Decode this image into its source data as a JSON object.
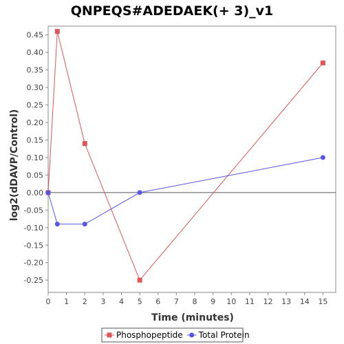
{
  "chart_data": {
    "type": "line",
    "title": "QNPEQS#ADEDAEK(+ 3)_v1",
    "xlabel": "Time (minutes)",
    "ylabel": "log2(dDAVP/Control)",
    "xlim": [
      0,
      15.7
    ],
    "ylim": [
      -0.285,
      0.475
    ],
    "xticks": [
      0,
      1,
      2,
      3,
      4,
      5,
      6,
      7,
      8,
      9,
      10,
      11,
      12,
      13,
      14,
      15
    ],
    "yticks": [
      -0.25,
      -0.2,
      -0.15,
      -0.1,
      -0.05,
      0.0,
      0.05,
      0.1,
      0.15,
      0.2,
      0.25,
      0.3,
      0.35,
      0.4,
      0.45
    ],
    "ytick_labels": [
      "-0.25",
      "-0.20",
      "-0.15",
      "-0.10",
      "-0.05",
      "0.00",
      "0.05",
      "0.10",
      "0.15",
      "0.20",
      "0.25",
      "0.30",
      "0.35",
      "0.40",
      "0.45"
    ],
    "grid": false,
    "zero_line": true,
    "legend_position": "bottom",
    "series": [
      {
        "name": "Phosphopeptide",
        "color": "#e05555",
        "marker": "square",
        "x": [
          0,
          0.5,
          2,
          5,
          15
        ],
        "y": [
          0.0,
          0.46,
          0.14,
          -0.25,
          0.37
        ]
      },
      {
        "name": "Total Protein",
        "color": "#5555e8",
        "marker": "circle",
        "x": [
          0,
          0.5,
          2,
          5,
          15
        ],
        "y": [
          0.0,
          -0.09,
          -0.09,
          0.0,
          0.1
        ]
      }
    ]
  }
}
